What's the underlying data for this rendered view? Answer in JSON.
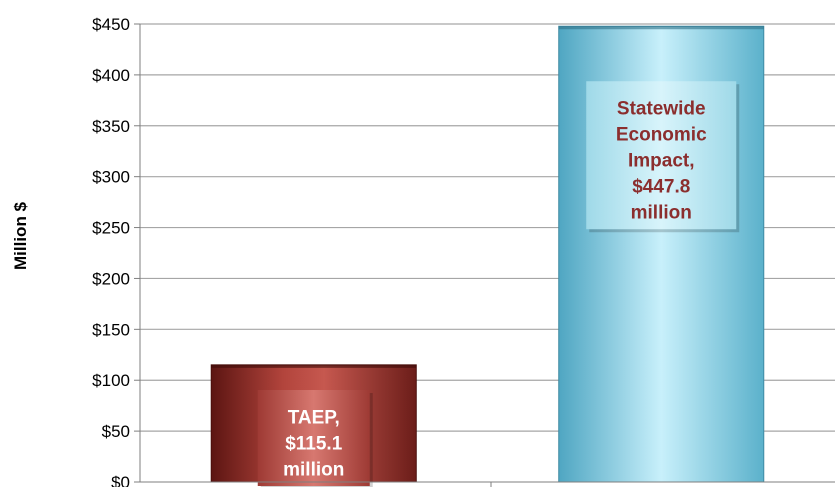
{
  "chart_data": {
    "type": "bar",
    "title": "",
    "xlabel": "",
    "ylabel": "Million $",
    "ylim": [
      0,
      450
    ],
    "yticks": [
      0,
      50,
      100,
      150,
      200,
      250,
      300,
      350,
      400,
      450
    ],
    "ytick_labels": [
      "$0",
      "$50",
      "$100",
      "$150",
      "$200",
      "$250",
      "$300",
      "$350",
      "$400",
      "$450"
    ],
    "grid": true,
    "legend": "none",
    "categories": [
      "TAEP",
      "Statewide Economic Impact"
    ],
    "values": [
      115.1,
      447.8
    ],
    "data_labels": [
      [
        "TAEP,",
        "$115.1",
        "million"
      ],
      [
        "Statewide",
        "Economic",
        "Impact,",
        "$447.8",
        "million"
      ]
    ],
    "colors": {
      "bar_0": "#8b2a26",
      "bar_1": "#7cc6d9",
      "label_text": "#8b2e2e",
      "label_text_light": "#ffffff",
      "gridline": "#a6a6a6"
    }
  }
}
